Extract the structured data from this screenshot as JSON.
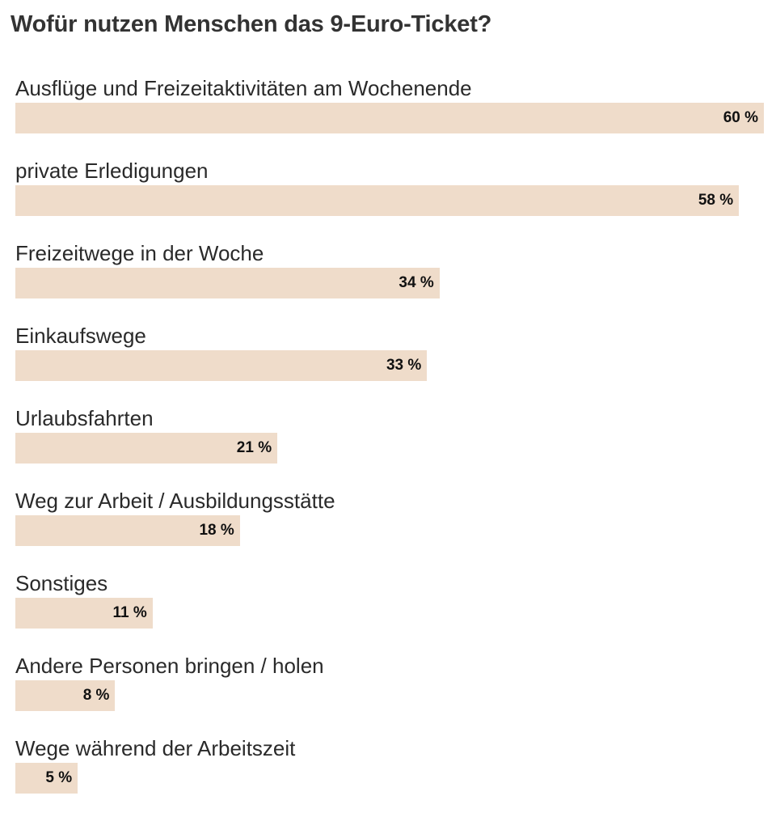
{
  "chart_data": {
    "type": "bar",
    "orientation": "horizontal",
    "title": "Wofür nutzen Menschen das 9-Euro-Ticket?",
    "categories": [
      "Ausflüge und Freizeitaktivitäten am Wochenende",
      "private Erledigungen",
      "Freizeitwege in der Woche",
      "Einkaufswege",
      "Urlaubsfahrten",
      "Weg zur Arbeit / Ausbildungsstätte",
      "Sonstiges",
      "Andere Personen bringen / holen",
      "Wege während der Arbeitszeit"
    ],
    "values": [
      60,
      58,
      34,
      33,
      21,
      18,
      11,
      8,
      5
    ],
    "value_labels": [
      "60 %",
      "58 %",
      "34 %",
      "33 %",
      "21 %",
      "18 %",
      "11 %",
      "8 %",
      "5 %"
    ],
    "xlim": [
      0,
      60
    ],
    "grid": false,
    "bar_color": "#efdcca"
  }
}
